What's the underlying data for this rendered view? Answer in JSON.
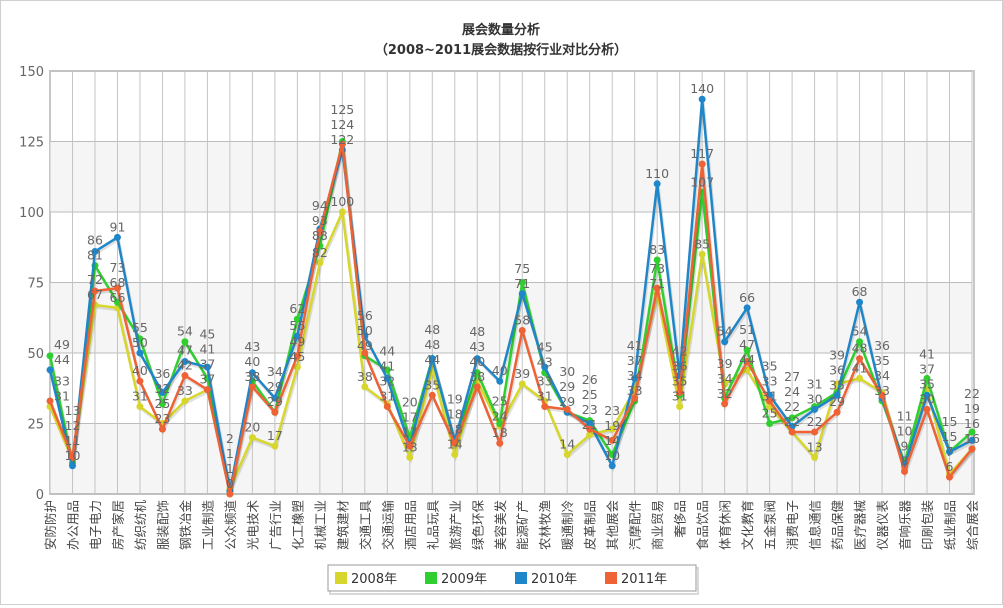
{
  "chart_data": {
    "type": "line",
    "title": "展会数量分析",
    "subtitle": "（2008~2011展会数据按行业对比分析）",
    "xlabel": "",
    "ylabel": "",
    "ylim": [
      0,
      150
    ],
    "yticks": [
      0,
      25,
      50,
      75,
      100,
      125,
      150
    ],
    "grid": true,
    "legend_position": "bottom",
    "categories": [
      "安防防护",
      "办公用品",
      "电子电力",
      "房产家居",
      "纺织纺机",
      "服装配饰",
      "钢铁冶金",
      "工业制造",
      "公众频道",
      "光电技术",
      "广告行业",
      "化工橡塑",
      "机械工业",
      "建筑建材",
      "交通工具",
      "交通运输",
      "酒店用品",
      "礼品玩具",
      "旅游产业",
      "绿色环保",
      "美容美发",
      "能源矿产",
      "农林牧渔",
      "暖通制冷",
      "皮革制品",
      "其他展会",
      "汽摩配件",
      "商业贸易",
      "奢侈品",
      "食品饮品",
      "体育休闲",
      "文化教育",
      "五金泵阀",
      "消费电子",
      "信息通信",
      "药品保健",
      "医疗器械",
      "仪器仪表",
      "音响乐器",
      "印刷包装",
      "纸业制品",
      "综合展会"
    ],
    "series": [
      {
        "name": "2008年",
        "color": "#d6d62c",
        "values": [
          31,
          12,
          67,
          66,
          31,
          25,
          33,
          37,
          2,
          20,
          17,
          45,
          82,
          100,
          38,
          32,
          13,
          44,
          14,
          40,
          24,
          39,
          33,
          14,
          21,
          23,
          37,
          71,
          31,
          85,
          39,
          44,
          31,
          22,
          13,
          39,
          41,
          36,
          9,
          37,
          7,
          16
        ]
      },
      {
        "name": "2009年",
        "color": "#2fcf2f",
        "values": [
          49,
          11,
          81,
          68,
          55,
          32,
          54,
          41,
          1,
          40,
          29,
          62,
          88,
          125,
          49,
          44,
          20,
          48,
          18,
          43,
          25,
          75,
          43,
          29,
          26,
          14,
          33,
          83,
          35,
          107,
          34,
          51,
          25,
          27,
          31,
          36,
          54,
          33,
          11,
          41,
          15,
          22
        ]
      },
      {
        "name": "2010年",
        "color": "#1f86c9",
        "values": [
          44,
          10,
          86,
          91,
          50,
          36,
          47,
          45,
          1,
          43,
          34,
          56,
          94,
          122,
          56,
          41,
          17,
          48,
          19,
          48,
          40,
          71,
          45,
          29,
          25,
          10,
          41,
          110,
          42,
          140,
          54,
          66,
          35,
          24,
          30,
          35,
          68,
          34,
          10,
          35,
          15,
          19
        ]
      },
      {
        "name": "2011年",
        "color": "#ee6236",
        "values": [
          33,
          13,
          72,
          73,
          40,
          23,
          42,
          37,
          0,
          38,
          29,
          49,
          93,
          124,
          50,
          31,
          17,
          35,
          18,
          38,
          18,
          58,
          31,
          30,
          23,
          19,
          34,
          73,
          36,
          117,
          32,
          47,
          33,
          22,
          22,
          29,
          48,
          35,
          8,
          30,
          6,
          16
        ]
      }
    ]
  }
}
